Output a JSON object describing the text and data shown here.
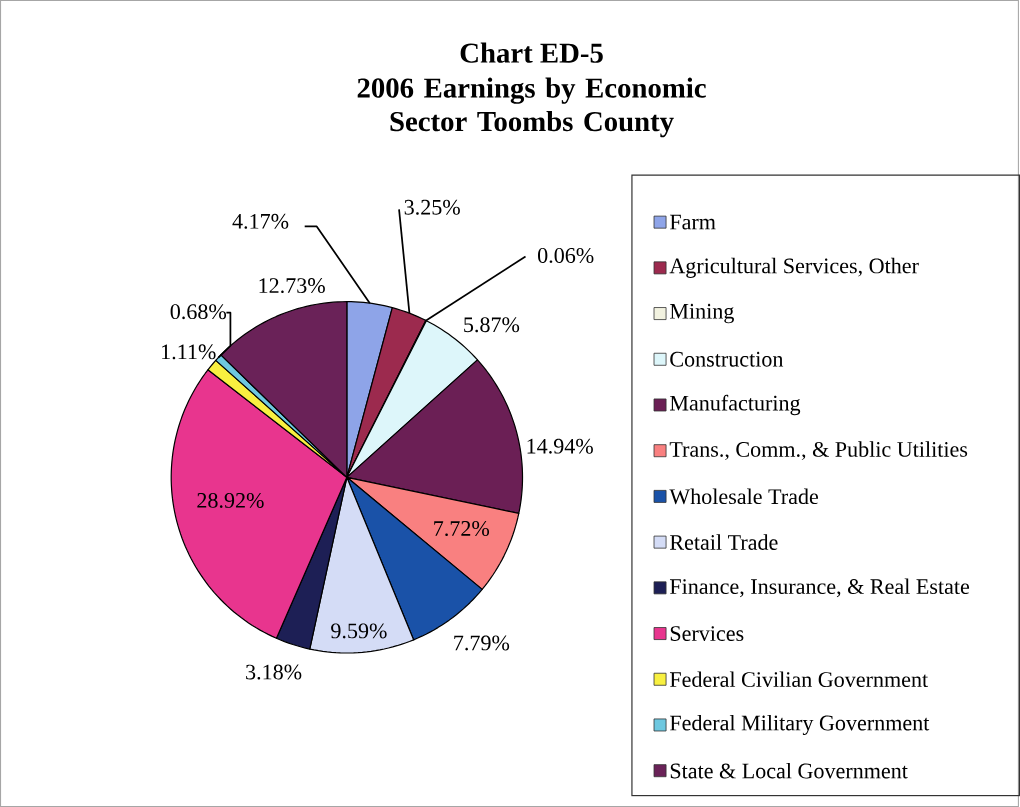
{
  "chart_data": {
    "type": "pie",
    "title": "Chart ED-5",
    "subtitle": "2006 Earnings by Economic Sector Toombs County",
    "categories": [
      "Farm",
      "Agricultural Services, Other",
      "Mining",
      "Construction",
      "Manufacturing",
      "Trans., Comm., & Public Utilities",
      "Wholesale Trade",
      "Retail Trade",
      "Finance, Insurance, & Real Estate",
      "Services",
      "Federal Civilian Government",
      "Federal Military Government",
      "State & Local Government"
    ],
    "values": [
      4.17,
      3.25,
      0.06,
      5.87,
      14.94,
      7.72,
      7.79,
      9.59,
      3.18,
      28.92,
      1.11,
      0.68,
      12.73
    ],
    "value_labels": [
      "4.17%",
      "3.25%",
      "0.06%",
      "5.87%",
      "14.94%",
      "7.72%",
      "7.79%",
      "9.59%",
      "3.18%",
      "28.92%",
      "1.11%",
      "0.68%",
      "12.73%"
    ],
    "colors": [
      "#8ea4e8",
      "#9c2a4e",
      "#f2f2e0",
      "#ddf6fa",
      "#6b1f55",
      "#f98080",
      "#1a52a8",
      "#d4dcf6",
      "#1d1f55",
      "#e8358e",
      "#f8f040",
      "#6ec8e0",
      "#6a2258"
    ],
    "legend": "right"
  }
}
